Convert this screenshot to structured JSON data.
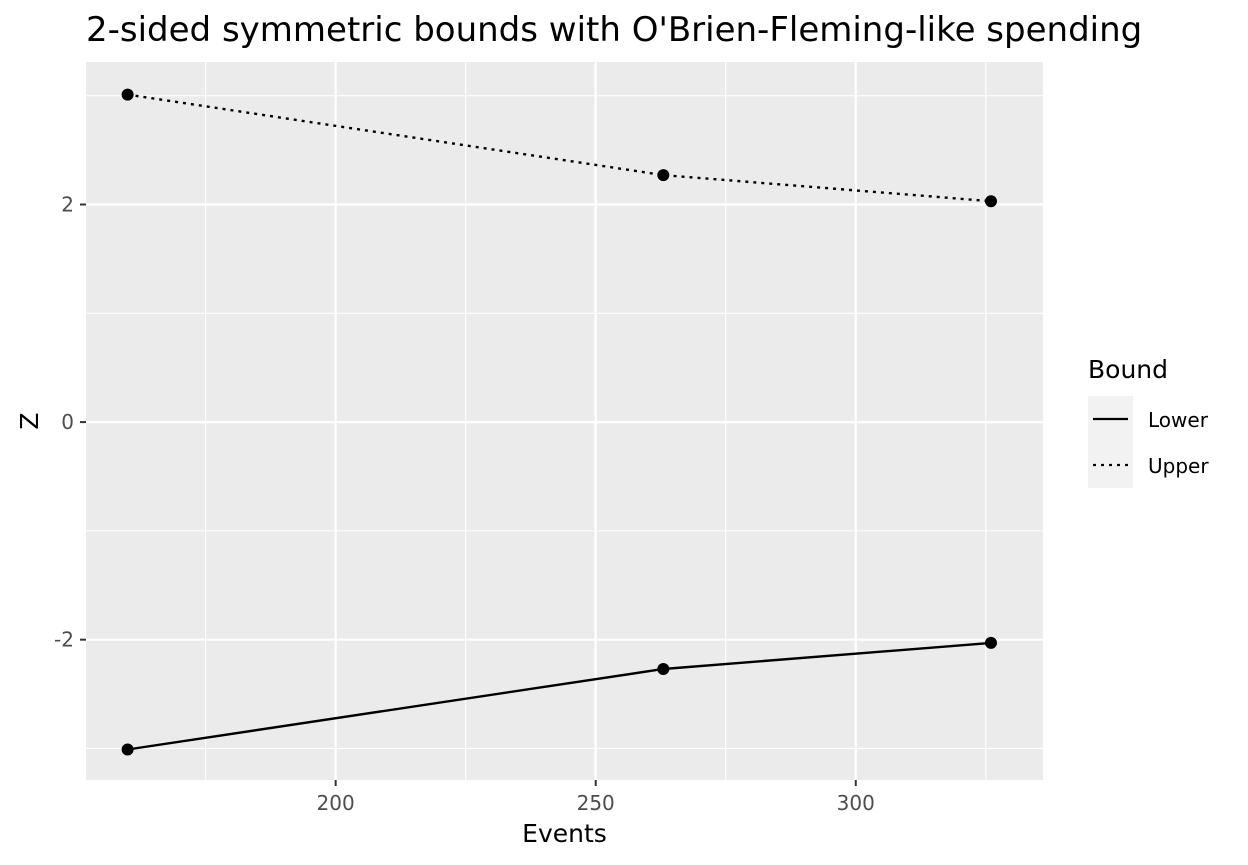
{
  "chart_data": {
    "type": "line",
    "title": "2-sided symmetric bounds with O'Brien-Fleming-like spending",
    "xlabel": "Events",
    "ylabel": "Z",
    "xlim": [
      152,
      336
    ],
    "ylim": [
      -3.29,
      3.31
    ],
    "x_ticks": [
      200,
      250,
      300
    ],
    "y_ticks": [
      -2,
      0,
      2
    ],
    "grid": true,
    "legend": {
      "title": "Bound",
      "position": "right"
    },
    "colors": {
      "panel": "#ebebeb",
      "grid": "#ffffff",
      "line": "#000000",
      "tick_text": "#4d4d4d"
    },
    "series": [
      {
        "name": "Lower",
        "linetype": "solid",
        "points": [
          {
            "x": 160,
            "y": -3.01
          },
          {
            "x": 263,
            "y": -2.27
          },
          {
            "x": 326,
            "y": -2.03
          }
        ]
      },
      {
        "name": "Upper",
        "linetype": "dotted",
        "points": [
          {
            "x": 160,
            "y": 3.01
          },
          {
            "x": 263,
            "y": 2.27
          },
          {
            "x": 326,
            "y": 2.03
          }
        ]
      }
    ]
  }
}
